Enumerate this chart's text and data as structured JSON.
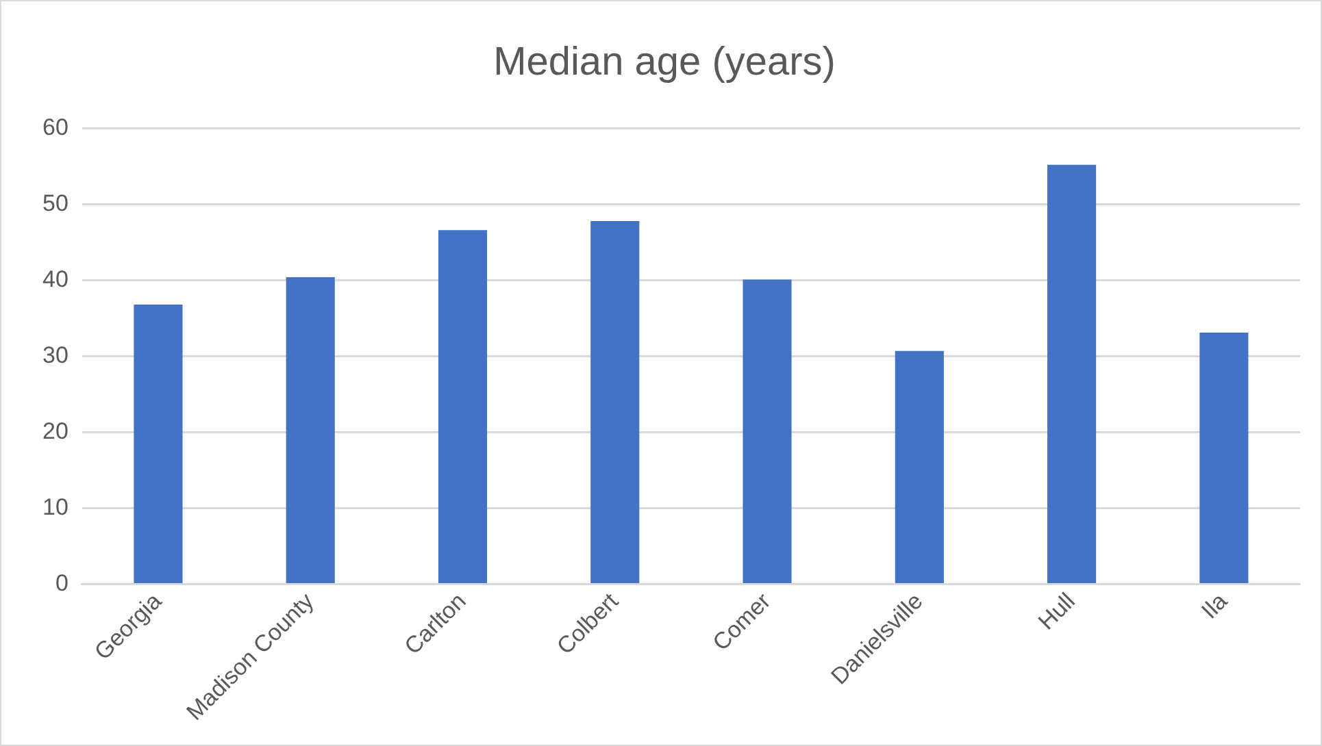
{
  "chart_data": {
    "type": "bar",
    "title": "Median age (years)",
    "categories": [
      "Georgia",
      "Madison County",
      "Carlton",
      "Colbert",
      "Comer",
      "Danielsville",
      "Hull",
      "Ila"
    ],
    "values": [
      36.8,
      40.4,
      46.6,
      47.8,
      40.1,
      30.7,
      55.2,
      33.1
    ],
    "color": "#4472c4",
    "ylim": [
      0,
      60
    ],
    "yticks": [
      0,
      10,
      20,
      30,
      40,
      50,
      60
    ],
    "grid": "y"
  }
}
